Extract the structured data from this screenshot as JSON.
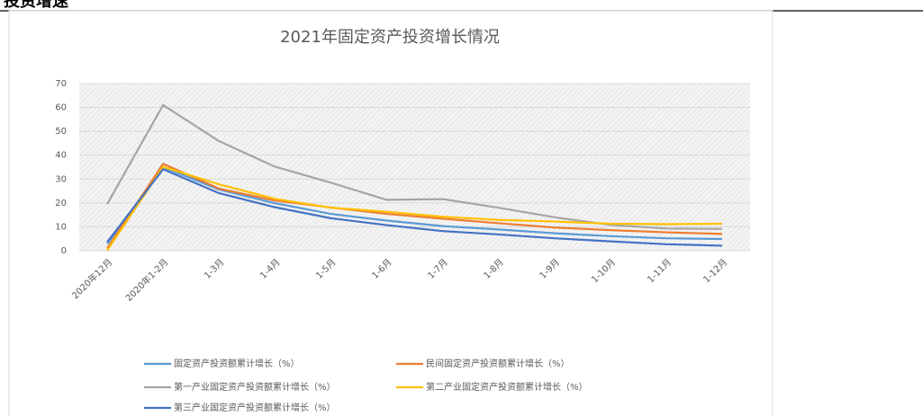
{
  "header": {
    "title": "投资增速"
  },
  "chart_data": {
    "type": "line",
    "title": "2021年固定资产投资增长情况",
    "categories": [
      "2020年12月",
      "2020年1-2月",
      "1-3月",
      "1-4月",
      "1-5月",
      "1-6月",
      "1-7月",
      "1-8月",
      "1-9月",
      "1-10月",
      "1-11月",
      "1-12月"
    ],
    "series": [
      {
        "name": "固定资产投资额累计增长（%）",
        "color": "#5b9bd5",
        "values": [
          2.9,
          35.0,
          25.6,
          19.9,
          15.4,
          12.6,
          10.3,
          8.9,
          7.3,
          6.1,
          5.2,
          4.9
        ]
      },
      {
        "name": "民间固定资产投资额累计增长（%）",
        "color": "#ed7d31",
        "values": [
          1.0,
          36.4,
          26.0,
          21.0,
          18.1,
          15.4,
          13.4,
          11.5,
          9.7,
          8.6,
          7.7,
          7.0
        ]
      },
      {
        "name": "第一产业固定资产投资额累计增长（%）",
        "color": "#a5a5a5",
        "values": [
          19.5,
          61.0,
          45.9,
          35.2,
          28.5,
          21.3,
          21.6,
          18.0,
          14.0,
          10.8,
          9.3,
          9.1
        ]
      },
      {
        "name": "第二产业固定资产投资额累计增长（%）",
        "color": "#ffc000",
        "values": [
          0.1,
          35.1,
          27.8,
          21.7,
          18.0,
          16.3,
          14.2,
          12.9,
          12.2,
          11.3,
          11.1,
          11.3
        ]
      },
      {
        "name": "第三产业固定资产投资额累计增长（%）",
        "color": "#4472c4",
        "values": [
          3.6,
          34.1,
          24.1,
          18.2,
          13.6,
          10.7,
          8.2,
          6.8,
          5.2,
          3.9,
          2.7,
          2.1
        ]
      }
    ],
    "ylim": [
      0,
      70
    ],
    "yticks": [
      0,
      10,
      20,
      30,
      40,
      50,
      60,
      70
    ],
    "grid": true
  }
}
